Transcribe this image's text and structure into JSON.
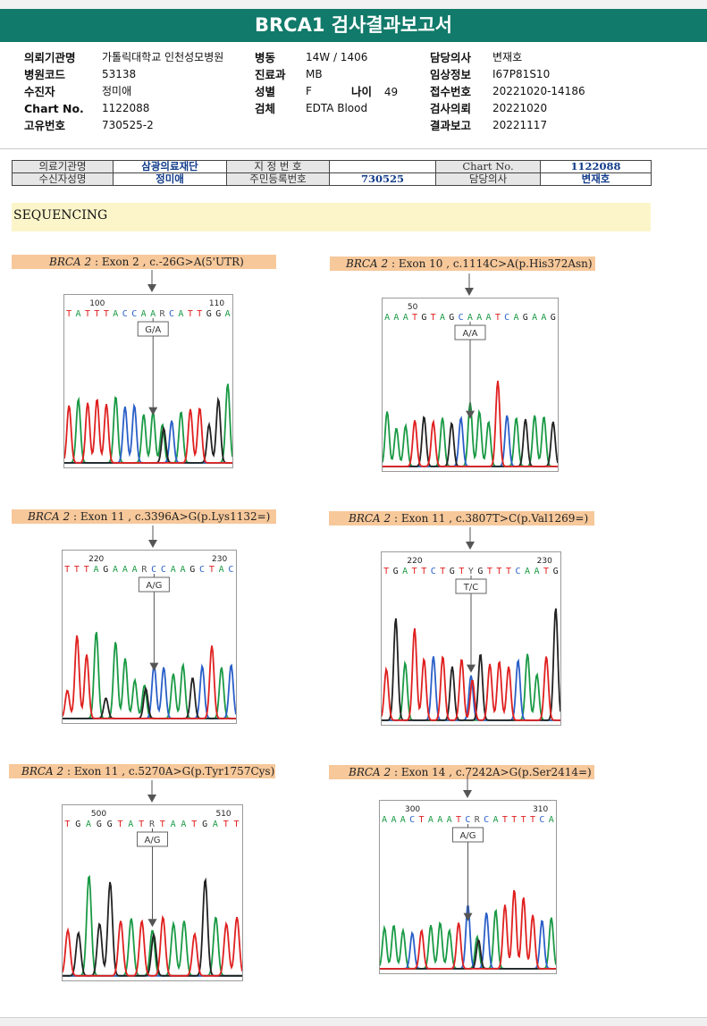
{
  "report": {
    "title": "BRCA1 검사결과보고서"
  },
  "info": {
    "col1": [
      {
        "label": "의뢰기관명",
        "value": "가톨릭대학교 인천성모병원"
      },
      {
        "label": "병원코드",
        "value": "53138"
      },
      {
        "label": "수진자",
        "value": "정미애"
      },
      {
        "label": "Chart No.",
        "value": "1122088"
      },
      {
        "label": "고유번호",
        "value": "730525-2"
      }
    ],
    "col2": [
      {
        "label": "병동",
        "value": "14W / 1406"
      },
      {
        "label": "진료과",
        "value": "MB"
      },
      {
        "label": "성별",
        "value": "F"
      },
      {
        "label": "검체",
        "value": "EDTA Blood"
      }
    ],
    "age": {
      "label": "나이",
      "value": "49"
    },
    "col3": [
      {
        "label": "담당의사",
        "value": "변재호"
      },
      {
        "label": "임상정보",
        "value": "I67P81S10"
      },
      {
        "label": "접수번호",
        "value": "20221020-14186"
      },
      {
        "label": "검사의뢰",
        "value": "20221020"
      },
      {
        "label": "결과보고",
        "value": "20221117"
      }
    ]
  },
  "patient_table": {
    "institution_label": "의료기관명",
    "institution": "삼광의료재단",
    "designation_label": "지 정 번 호",
    "designation": "",
    "chart_label": "Chart No.",
    "chart": "1122088",
    "name_label": "수신자성명",
    "name": "정미애",
    "rrn_label": "주민등록번호",
    "rrn": "730525",
    "doctor_label": "담당의사",
    "doctor": "변재호"
  },
  "section": {
    "title": "SEQUENCING"
  },
  "colors": {
    "A": "#1a9a45",
    "C": "#2a5fc8",
    "G": "#222222",
    "T": "#e02020",
    "header": "#117a6a",
    "label_bg": "#f7c89a"
  },
  "variants": [
    {
      "gene": "BRCA 2",
      "detail": " : Exon 2 , c.-26G>A(5'UTR)",
      "genotype": "G/A",
      "sequence": "TATTTACCAARCATTGGA",
      "pos1": "100",
      "pos2": "110",
      "peaks": [
        [
          "T",
          0.45
        ],
        [
          "A",
          0.5
        ],
        [
          "T",
          0.47
        ],
        [
          "T",
          0.5
        ],
        [
          "T",
          0.46
        ],
        [
          "A",
          0.52
        ],
        [
          "C",
          0.44
        ],
        [
          "C",
          0.45
        ],
        [
          "A",
          0.38
        ],
        [
          "A",
          0.4
        ],
        [
          "R",
          0.3
        ],
        [
          "C",
          0.33
        ],
        [
          "A",
          0.4
        ],
        [
          "T",
          0.42
        ],
        [
          "T",
          0.43
        ],
        [
          "G",
          0.3
        ],
        [
          "G",
          0.5
        ],
        [
          "A",
          0.62
        ]
      ]
    },
    {
      "gene": "BRCA 2",
      "detail": " : Exon 10 , c.1114C>A(p.His372Asn)",
      "genotype": "A/A",
      "sequence": "AAATGTAGCAAATCAGAAG",
      "pos1": "50",
      "pos2": "",
      "peaks": [
        [
          "A",
          0.43
        ],
        [
          "A",
          0.3
        ],
        [
          "A",
          0.32
        ],
        [
          "T",
          0.36
        ],
        [
          "G",
          0.39
        ],
        [
          "T",
          0.35
        ],
        [
          "A",
          0.38
        ],
        [
          "G",
          0.34
        ],
        [
          "C",
          0.38
        ],
        [
          "A",
          0.5
        ],
        [
          "A",
          0.43
        ],
        [
          "A",
          0.35
        ],
        [
          "T",
          0.67
        ],
        [
          "C",
          0.4
        ],
        [
          "A",
          0.38
        ],
        [
          "G",
          0.37
        ],
        [
          "A",
          0.4
        ],
        [
          "A",
          0.39
        ],
        [
          "G",
          0.35
        ]
      ]
    },
    {
      "gene": "BRCA 2",
      "detail": " : Exon 11 , c.3396A>G(p.Lys1132=)",
      "genotype": "A/G",
      "sequence": "TTTAGAAARCCAAGCTAC",
      "pos1": "220",
      "pos2": "230",
      "peaks": [
        [
          "T",
          0.22
        ],
        [
          "T",
          0.65
        ],
        [
          "T",
          0.5
        ],
        [
          "A",
          0.68
        ],
        [
          "G",
          0.16
        ],
        [
          "A",
          0.6
        ],
        [
          "A",
          0.47
        ],
        [
          "A",
          0.3
        ],
        [
          "R",
          0.26
        ],
        [
          "C",
          0.42
        ],
        [
          "C",
          0.4
        ],
        [
          "A",
          0.35
        ],
        [
          "A",
          0.42
        ],
        [
          "G",
          0.32
        ],
        [
          "C",
          0.41
        ],
        [
          "T",
          0.57
        ],
        [
          "A",
          0.4
        ],
        [
          "C",
          0.42
        ]
      ]
    },
    {
      "gene": "BRCA 2",
      "detail": " : Exon 11 , c.3807T>C(p.Val1269=)",
      "genotype": "T/C",
      "sequence": "TGATTCTGTYGTTTCAATG",
      "pos1": "220",
      "pos2": "230",
      "peaks": [
        [
          "T",
          0.4
        ],
        [
          "G",
          0.8
        ],
        [
          "A",
          0.45
        ],
        [
          "T",
          0.72
        ],
        [
          "T",
          0.48
        ],
        [
          "C",
          0.5
        ],
        [
          "T",
          0.5
        ],
        [
          "G",
          0.42
        ],
        [
          "T",
          0.48
        ],
        [
          "Y",
          0.35
        ],
        [
          "G",
          0.52
        ],
        [
          "T",
          0.44
        ],
        [
          "T",
          0.46
        ],
        [
          "T",
          0.42
        ],
        [
          "C",
          0.47
        ],
        [
          "A",
          0.52
        ],
        [
          "A",
          0.36
        ],
        [
          "T",
          0.5
        ],
        [
          "G",
          0.88
        ]
      ]
    },
    {
      "gene": "BRCA 2",
      "detail": " : Exon 11 , c.5270A>G(p.Tyr1757Cys)",
      "genotype": "A/G",
      "sequence": "TGAGGTATRTAATGATT",
      "pos1": "500",
      "pos2": "510",
      "peaks": [
        [
          "T",
          0.35
        ],
        [
          "G",
          0.33
        ],
        [
          "A",
          0.77
        ],
        [
          "G",
          0.4
        ],
        [
          "G",
          0.72
        ],
        [
          "T",
          0.42
        ],
        [
          "A",
          0.44
        ],
        [
          "T",
          0.42
        ],
        [
          "R",
          0.35
        ],
        [
          "T",
          0.45
        ],
        [
          "A",
          0.4
        ],
        [
          "A",
          0.42
        ],
        [
          "T",
          0.32
        ],
        [
          "G",
          0.74
        ],
        [
          "A",
          0.45
        ],
        [
          "T",
          0.4
        ],
        [
          "T",
          0.45
        ]
      ]
    },
    {
      "gene": "BRCA 2",
      "detail": " : Exon 14 , c.7242A>G(p.Ser2414=)",
      "genotype": "A/G",
      "sequence": "AAACTAAATCRCATTTTCA",
      "pos1": "300",
      "pos2": "310",
      "peaks": [
        [
          "A",
          0.32
        ],
        [
          "A",
          0.34
        ],
        [
          "A",
          0.3
        ],
        [
          "C",
          0.28
        ],
        [
          "T",
          0.3
        ],
        [
          "A",
          0.34
        ],
        [
          "A",
          0.36
        ],
        [
          "A",
          0.3
        ],
        [
          "T",
          0.36
        ],
        [
          "C",
          0.5
        ],
        [
          "R",
          0.25
        ],
        [
          "C",
          0.44
        ],
        [
          "A",
          0.46
        ],
        [
          "T",
          0.5
        ],
        [
          "T",
          0.62
        ],
        [
          "T",
          0.56
        ],
        [
          "T",
          0.42
        ],
        [
          "C",
          0.38
        ],
        [
          "A",
          0.4
        ]
      ]
    }
  ]
}
